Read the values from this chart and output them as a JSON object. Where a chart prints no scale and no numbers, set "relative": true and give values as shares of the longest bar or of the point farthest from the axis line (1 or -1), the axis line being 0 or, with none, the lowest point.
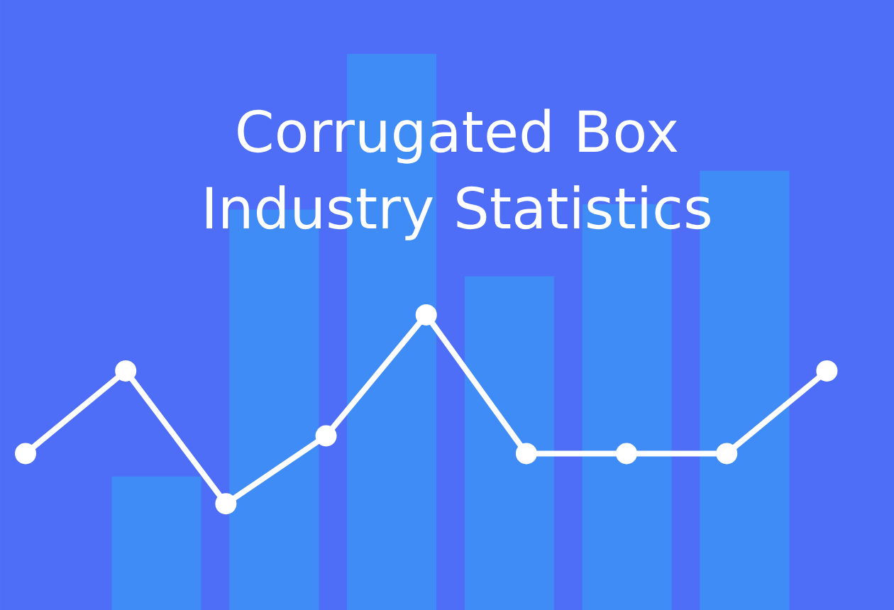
{
  "chart_data": [
    {
      "type": "bar",
      "title": "Corrugated Box Industry Statistics",
      "relative": true,
      "categories": [
        null,
        null,
        null,
        null,
        null,
        null
      ],
      "color": "#3f8cf6",
      "values": [
        0.24,
        0.72,
        1.0,
        0.6,
        0.73,
        0.79
      ]
    },
    {
      "type": "line",
      "relative": true,
      "categories": [
        null,
        null,
        null,
        null,
        null,
        null,
        null,
        null,
        null
      ],
      "color": "#ffffff",
      "marker": "circle",
      "values": [
        0.53,
        0.81,
        0.36,
        0.59,
        1,
        0.53,
        0.53,
        0.53,
        0.81
      ]
    }
  ]
}
